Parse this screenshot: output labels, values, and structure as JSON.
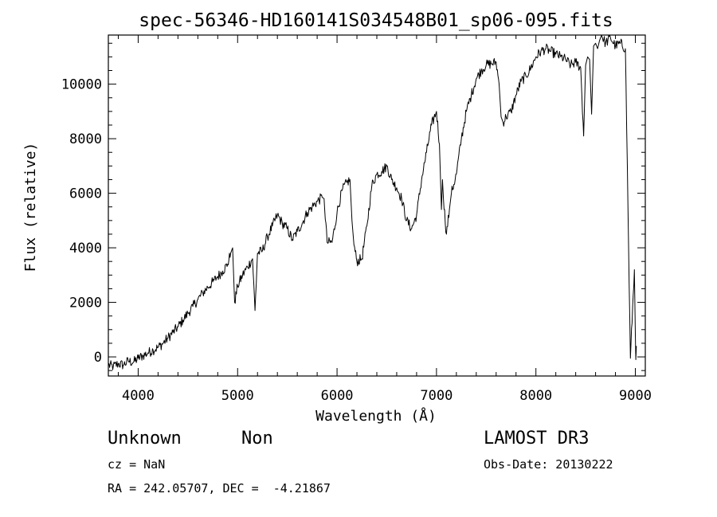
{
  "chart_data": {
    "type": "line",
    "title": "spec-56346-HD160141S034548B01_sp06-095.fits",
    "xlabel": "Wavelength (Å)",
    "ylabel": "Flux (relative)",
    "xlim": [
      3700,
      9100
    ],
    "ylim": [
      -700,
      11800
    ],
    "xticks": [
      4000,
      5000,
      6000,
      7000,
      8000,
      9000
    ],
    "yticks": [
      0,
      2000,
      4000,
      6000,
      8000,
      10000
    ],
    "xtick_labels": [
      "4000",
      "5000",
      "6000",
      "7000",
      "8000",
      "9000"
    ],
    "ytick_labels": [
      "0",
      "2000",
      "4000",
      "6000",
      "8000",
      "10000"
    ],
    "grid": false,
    "series": [
      {
        "name": "flux",
        "x": [
          3700,
          3750,
          3800,
          3850,
          3900,
          3950,
          4000,
          4050,
          4100,
          4150,
          4200,
          4250,
          4300,
          4350,
          4400,
          4450,
          4500,
          4550,
          4600,
          4650,
          4700,
          4750,
          4800,
          4850,
          4900,
          4930,
          4950,
          4970,
          5000,
          5050,
          5100,
          5150,
          5175,
          5200,
          5250,
          5300,
          5350,
          5400,
          5450,
          5500,
          5550,
          5600,
          5650,
          5700,
          5750,
          5800,
          5850,
          5870,
          5900,
          5950,
          6000,
          6050,
          6100,
          6130,
          6150,
          6170,
          6200,
          6250,
          6300,
          6350,
          6400,
          6450,
          6500,
          6550,
          6600,
          6650,
          6700,
          6750,
          6800,
          6850,
          6900,
          6950,
          7000,
          7030,
          7050,
          7060,
          7070,
          7100,
          7130,
          7150,
          7200,
          7250,
          7300,
          7350,
          7400,
          7450,
          7500,
          7550,
          7600,
          7630,
          7650,
          7670,
          7700,
          7750,
          7800,
          7850,
          7900,
          7950,
          8000,
          8050,
          8100,
          8150,
          8200,
          8250,
          8300,
          8350,
          8400,
          8450,
          8480,
          8500,
          8520,
          8540,
          8560,
          8580,
          8600,
          8620,
          8640,
          8660,
          8700,
          8750,
          8800,
          8850,
          8900,
          8950,
          8990,
          9000,
          9005,
          9010
        ],
        "y": [
          -300,
          -350,
          -250,
          -300,
          -150,
          -200,
          -50,
          50,
          150,
          250,
          350,
          500,
          700,
          900,
          1100,
          1350,
          1600,
          1850,
          2100,
          2350,
          2550,
          2750,
          2950,
          3150,
          3400,
          3800,
          4000,
          2000,
          2600,
          3000,
          3300,
          3600,
          1700,
          3800,
          3900,
          4400,
          4800,
          5200,
          4900,
          4700,
          4300,
          4600,
          4900,
          5300,
          5500,
          5700,
          5850,
          5800,
          4200,
          4200,
          5300,
          6100,
          6400,
          6500,
          5000,
          4100,
          3500,
          3600,
          4800,
          6300,
          6700,
          6800,
          7000,
          6500,
          6200,
          5800,
          5000,
          4700,
          5200,
          6500,
          7500,
          8500,
          9000,
          7800,
          5400,
          6500,
          5800,
          4500,
          5400,
          6000,
          6700,
          8000,
          9000,
          9600,
          10200,
          10500,
          10700,
          10750,
          10800,
          10000,
          8800,
          8600,
          8800,
          9000,
          9600,
          10100,
          10300,
          10600,
          11000,
          11200,
          11300,
          11200,
          11100,
          11000,
          10900,
          10700,
          10800,
          10600,
          8100,
          10700,
          11000,
          10900,
          8900,
          11400,
          11500,
          11300,
          11600,
          11800,
          11500,
          11700,
          11400,
          11500,
          11300,
          -50,
          3200,
          800,
          -100,
          400
        ]
      }
    ]
  },
  "info": {
    "object_class": "Unknown",
    "object_subclass": "Non",
    "redshift": "cz = NaN",
    "coords": "RA = 242.05707, DEC =  -4.21867",
    "survey": "LAMOST DR3",
    "obs_date": "Obs-Date: 20130222"
  }
}
